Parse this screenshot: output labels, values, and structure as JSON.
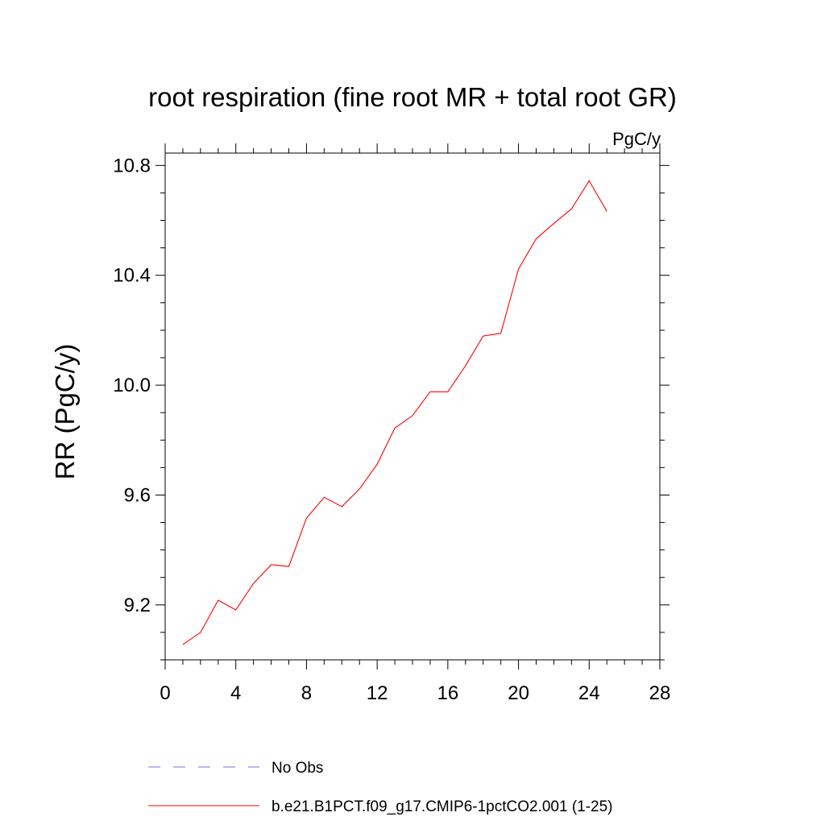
{
  "chart_data": {
    "type": "line",
    "title": "root respiration (fine root MR + total root GR)",
    "units_label": "PgC/y",
    "xlabel": "",
    "ylabel": "RR  (PgC/y)",
    "xlim": [
      0,
      28
    ],
    "ylim": [
      9.0,
      10.845
    ],
    "xticks": [
      0,
      4,
      8,
      12,
      16,
      20,
      24,
      28
    ],
    "xtick_labels": [
      "0",
      "4",
      "8",
      "12",
      "16",
      "20",
      "24",
      "28"
    ],
    "yticks": [
      9.2,
      9.6,
      10.0,
      10.4,
      10.8
    ],
    "ytick_labels": [
      "9.2",
      "9.6",
      "10.0",
      "10.4",
      "10.8"
    ],
    "grid": false,
    "legend_position": "bottom",
    "series": [
      {
        "name": "b.e21.B1PCT.f09_g17.CMIP6-1pctCO2.001 (1-25)",
        "color": "#ff0000",
        "style": "solid",
        "x": [
          1,
          2,
          3,
          4,
          5,
          6,
          7,
          8,
          9,
          10,
          11,
          12,
          13,
          14,
          15,
          16,
          17,
          18,
          19,
          20,
          21,
          22,
          23,
          24,
          25
        ],
        "y": [
          9.055,
          9.1,
          9.217,
          9.182,
          9.278,
          9.346,
          9.34,
          9.516,
          9.592,
          9.558,
          9.622,
          9.712,
          9.844,
          9.889,
          9.976,
          9.976,
          10.071,
          10.179,
          10.189,
          10.423,
          10.533,
          10.589,
          10.642,
          10.744,
          10.633
        ]
      }
    ],
    "legend": [
      {
        "label": "No Obs",
        "color": "#7b6fd6",
        "style": "dashed"
      },
      {
        "label": "b.e21.B1PCT.f09_g17.CMIP6-1pctCO2.001 (1-25)",
        "color": "#ff0000",
        "style": "solid"
      }
    ]
  }
}
